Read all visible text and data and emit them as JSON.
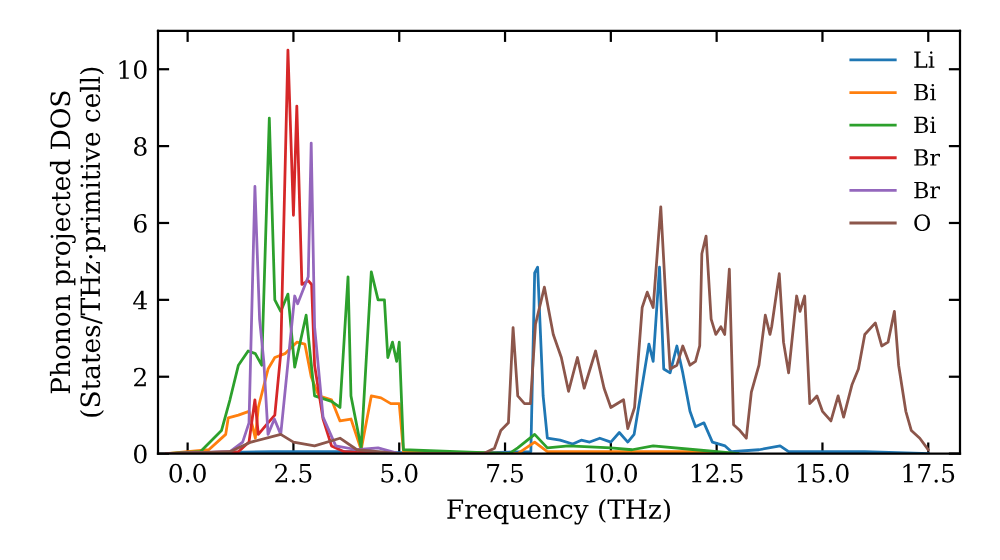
{
  "chart_data": {
    "type": "line",
    "xlabel": "Frequency (THz)",
    "ylabel": "Phonon projected DOS\n(States/THz·primitive cell)",
    "xlim": [
      -0.7,
      18.25
    ],
    "ylim": [
      0,
      11
    ],
    "xticks": [
      {
        "value": 0,
        "label": "0.0"
      },
      {
        "value": 2.5,
        "label": "2.5"
      },
      {
        "value": 5,
        "label": "5.0"
      },
      {
        "value": 7.5,
        "label": "7.5"
      },
      {
        "value": 10,
        "label": "10.0"
      },
      {
        "value": 12.5,
        "label": "12.5"
      },
      {
        "value": 15,
        "label": "15.0"
      },
      {
        "value": 17.5,
        "label": "17.5"
      }
    ],
    "yticks": [
      0,
      2,
      4,
      6,
      8,
      10
    ],
    "legend": "top right",
    "grid": false,
    "line_style": "solid",
    "marker": "none",
    "series": [
      {
        "name": "Li",
        "color": "#1f77b4",
        "x": [
          -0.5,
          2,
          4,
          6,
          8.11,
          8.2,
          8.27,
          8.4,
          8.5,
          8.8,
          9.1,
          9.3,
          9.5,
          9.74,
          10.0,
          10.2,
          10.4,
          10.55,
          10.7,
          10.9,
          11.0,
          11.15,
          11.25,
          11.4,
          11.56,
          11.7,
          11.87,
          12.0,
          12.2,
          12.4,
          12.7,
          12.85,
          13.5,
          14.0,
          14.2,
          15,
          16,
          17.5
        ],
        "values": [
          0,
          0.05,
          0.05,
          0,
          0.05,
          4.7,
          4.85,
          1.5,
          0.4,
          0.35,
          0.25,
          0.35,
          0.3,
          0.4,
          0.3,
          0.55,
          0.3,
          0.5,
          1.5,
          2.85,
          2.4,
          4.85,
          2.2,
          2.1,
          2.8,
          2.1,
          1.1,
          0.7,
          0.8,
          0.3,
          0.2,
          0.05,
          0.1,
          0.2,
          0.05,
          0.05,
          0.05,
          0
        ]
      },
      {
        "name": "Bi",
        "color": "#ff7f0e",
        "x": [
          -0.5,
          0.5,
          0.9,
          0.96,
          1.2,
          1.45,
          1.6,
          1.67,
          1.9,
          2.06,
          2.3,
          2.58,
          2.77,
          2.92,
          3.1,
          3.4,
          3.6,
          3.86,
          4.1,
          4.34,
          4.57,
          4.8,
          5.0,
          5.1,
          7.8,
          8.2,
          8.5,
          10,
          12,
          13
        ],
        "values": [
          0,
          0.1,
          0.5,
          0.93,
          1.0,
          1.1,
          0.4,
          1.2,
          2.2,
          2.5,
          2.6,
          2.9,
          2.85,
          2.0,
          1.5,
          1.4,
          0.85,
          0.9,
          0.1,
          1.5,
          1.45,
          1.3,
          1.3,
          0.05,
          0,
          0.3,
          0.05,
          0.05,
          0.05,
          0
        ]
      },
      {
        "name": "Bi",
        "color": "#2ca02c",
        "x": [
          -0.5,
          0.3,
          0.8,
          1.0,
          1.2,
          1.43,
          1.6,
          1.75,
          1.93,
          2.06,
          2.2,
          2.37,
          2.53,
          2.8,
          3.0,
          3.4,
          3.6,
          3.79,
          3.86,
          4.1,
          4.34,
          4.5,
          4.65,
          4.73,
          4.84,
          4.94,
          5.0,
          5.1,
          7.6,
          7.8,
          8.2,
          8.5,
          9,
          10,
          10.5,
          11,
          12,
          13
        ],
        "values": [
          0,
          0.05,
          0.6,
          1.4,
          2.3,
          2.67,
          2.6,
          2.3,
          8.73,
          4.0,
          3.7,
          4.15,
          2.25,
          3.6,
          1.5,
          1.36,
          1.2,
          4.6,
          1.5,
          0.15,
          4.73,
          4.0,
          4.0,
          2.5,
          2.9,
          2.4,
          2.9,
          0.1,
          0,
          0.15,
          0.5,
          0.15,
          0.2,
          0.15,
          0.1,
          0.2,
          0.1,
          0
        ]
      },
      {
        "name": "Br",
        "color": "#d62728",
        "x": [
          -0.5,
          1.2,
          1.45,
          1.59,
          1.67,
          1.9,
          2.06,
          2.2,
          2.37,
          2.5,
          2.58,
          2.7,
          2.85,
          2.93,
          3.0,
          3.2,
          3.4,
          3.7,
          5
        ],
        "values": [
          0,
          0.05,
          0.3,
          1.4,
          0.5,
          0.8,
          1.0,
          2.6,
          10.5,
          6.2,
          9.04,
          4.4,
          4.5,
          4.4,
          2.3,
          0.9,
          0.2,
          0.05,
          0
        ]
      },
      {
        "name": "Br",
        "color": "#9467bd",
        "x": [
          -0.5,
          1.0,
          1.3,
          1.45,
          1.59,
          1.7,
          1.8,
          1.9,
          2.05,
          2.2,
          2.53,
          2.6,
          2.85,
          2.92,
          3.0,
          3.2,
          3.5,
          4.0,
          4.5,
          5.0
        ],
        "values": [
          0,
          0.05,
          0.3,
          0.8,
          6.95,
          3.5,
          2.4,
          0.5,
          0.9,
          0.5,
          4.1,
          3.9,
          4.6,
          8.08,
          3.3,
          0.95,
          0.2,
          0.1,
          0.15,
          0
        ]
      },
      {
        "name": "O",
        "color": "#8c564b",
        "x": [
          -0.5,
          1.0,
          1.5,
          2.2,
          2.5,
          3.0,
          3.6,
          4.0,
          5.0,
          7.0,
          7.25,
          7.4,
          7.58,
          7.69,
          7.8,
          7.96,
          8.1,
          8.22,
          8.43,
          8.64,
          8.83,
          9.0,
          9.21,
          9.37,
          9.64,
          9.84,
          10.0,
          10.3,
          10.4,
          10.56,
          10.74,
          10.86,
          11.0,
          11.18,
          11.3,
          11.4,
          11.56,
          11.7,
          11.87,
          12.0,
          12.1,
          12.15,
          12.25,
          12.37,
          12.48,
          12.6,
          12.69,
          12.8,
          12.9,
          13.05,
          13.2,
          13.32,
          13.5,
          13.65,
          13.76,
          13.8,
          13.98,
          14.08,
          14.2,
          14.39,
          14.47,
          14.58,
          14.7,
          14.87,
          15.0,
          15.2,
          15.37,
          15.5,
          15.7,
          15.85,
          16.0,
          16.25,
          16.4,
          16.55,
          16.7,
          16.8,
          16.97,
          17.1,
          17.3,
          17.5
        ],
        "values": [
          0,
          0.05,
          0.3,
          0.5,
          0.3,
          0.2,
          0.4,
          0.1,
          0,
          0,
          0.14,
          0.6,
          0.8,
          3.28,
          1.5,
          1.3,
          1.3,
          3.37,
          4.33,
          3.1,
          2.5,
          1.62,
          2.5,
          1.7,
          2.67,
          1.7,
          1.2,
          1.4,
          0.65,
          1.2,
          3.8,
          4.2,
          3.8,
          6.42,
          4.0,
          2.2,
          2.3,
          2.8,
          2.3,
          2.4,
          2.8,
          5.2,
          5.66,
          3.5,
          3.1,
          3.3,
          3.1,
          4.8,
          0.75,
          0.6,
          0.4,
          1.6,
          2.3,
          3.6,
          3.1,
          3.3,
          4.68,
          2.9,
          2.1,
          4.1,
          3.7,
          4.1,
          1.3,
          1.5,
          1.1,
          0.85,
          1.5,
          0.95,
          1.8,
          2.2,
          3.1,
          3.4,
          2.8,
          2.9,
          3.7,
          2.3,
          1.1,
          0.6,
          0.4,
          0.1
        ]
      }
    ]
  }
}
